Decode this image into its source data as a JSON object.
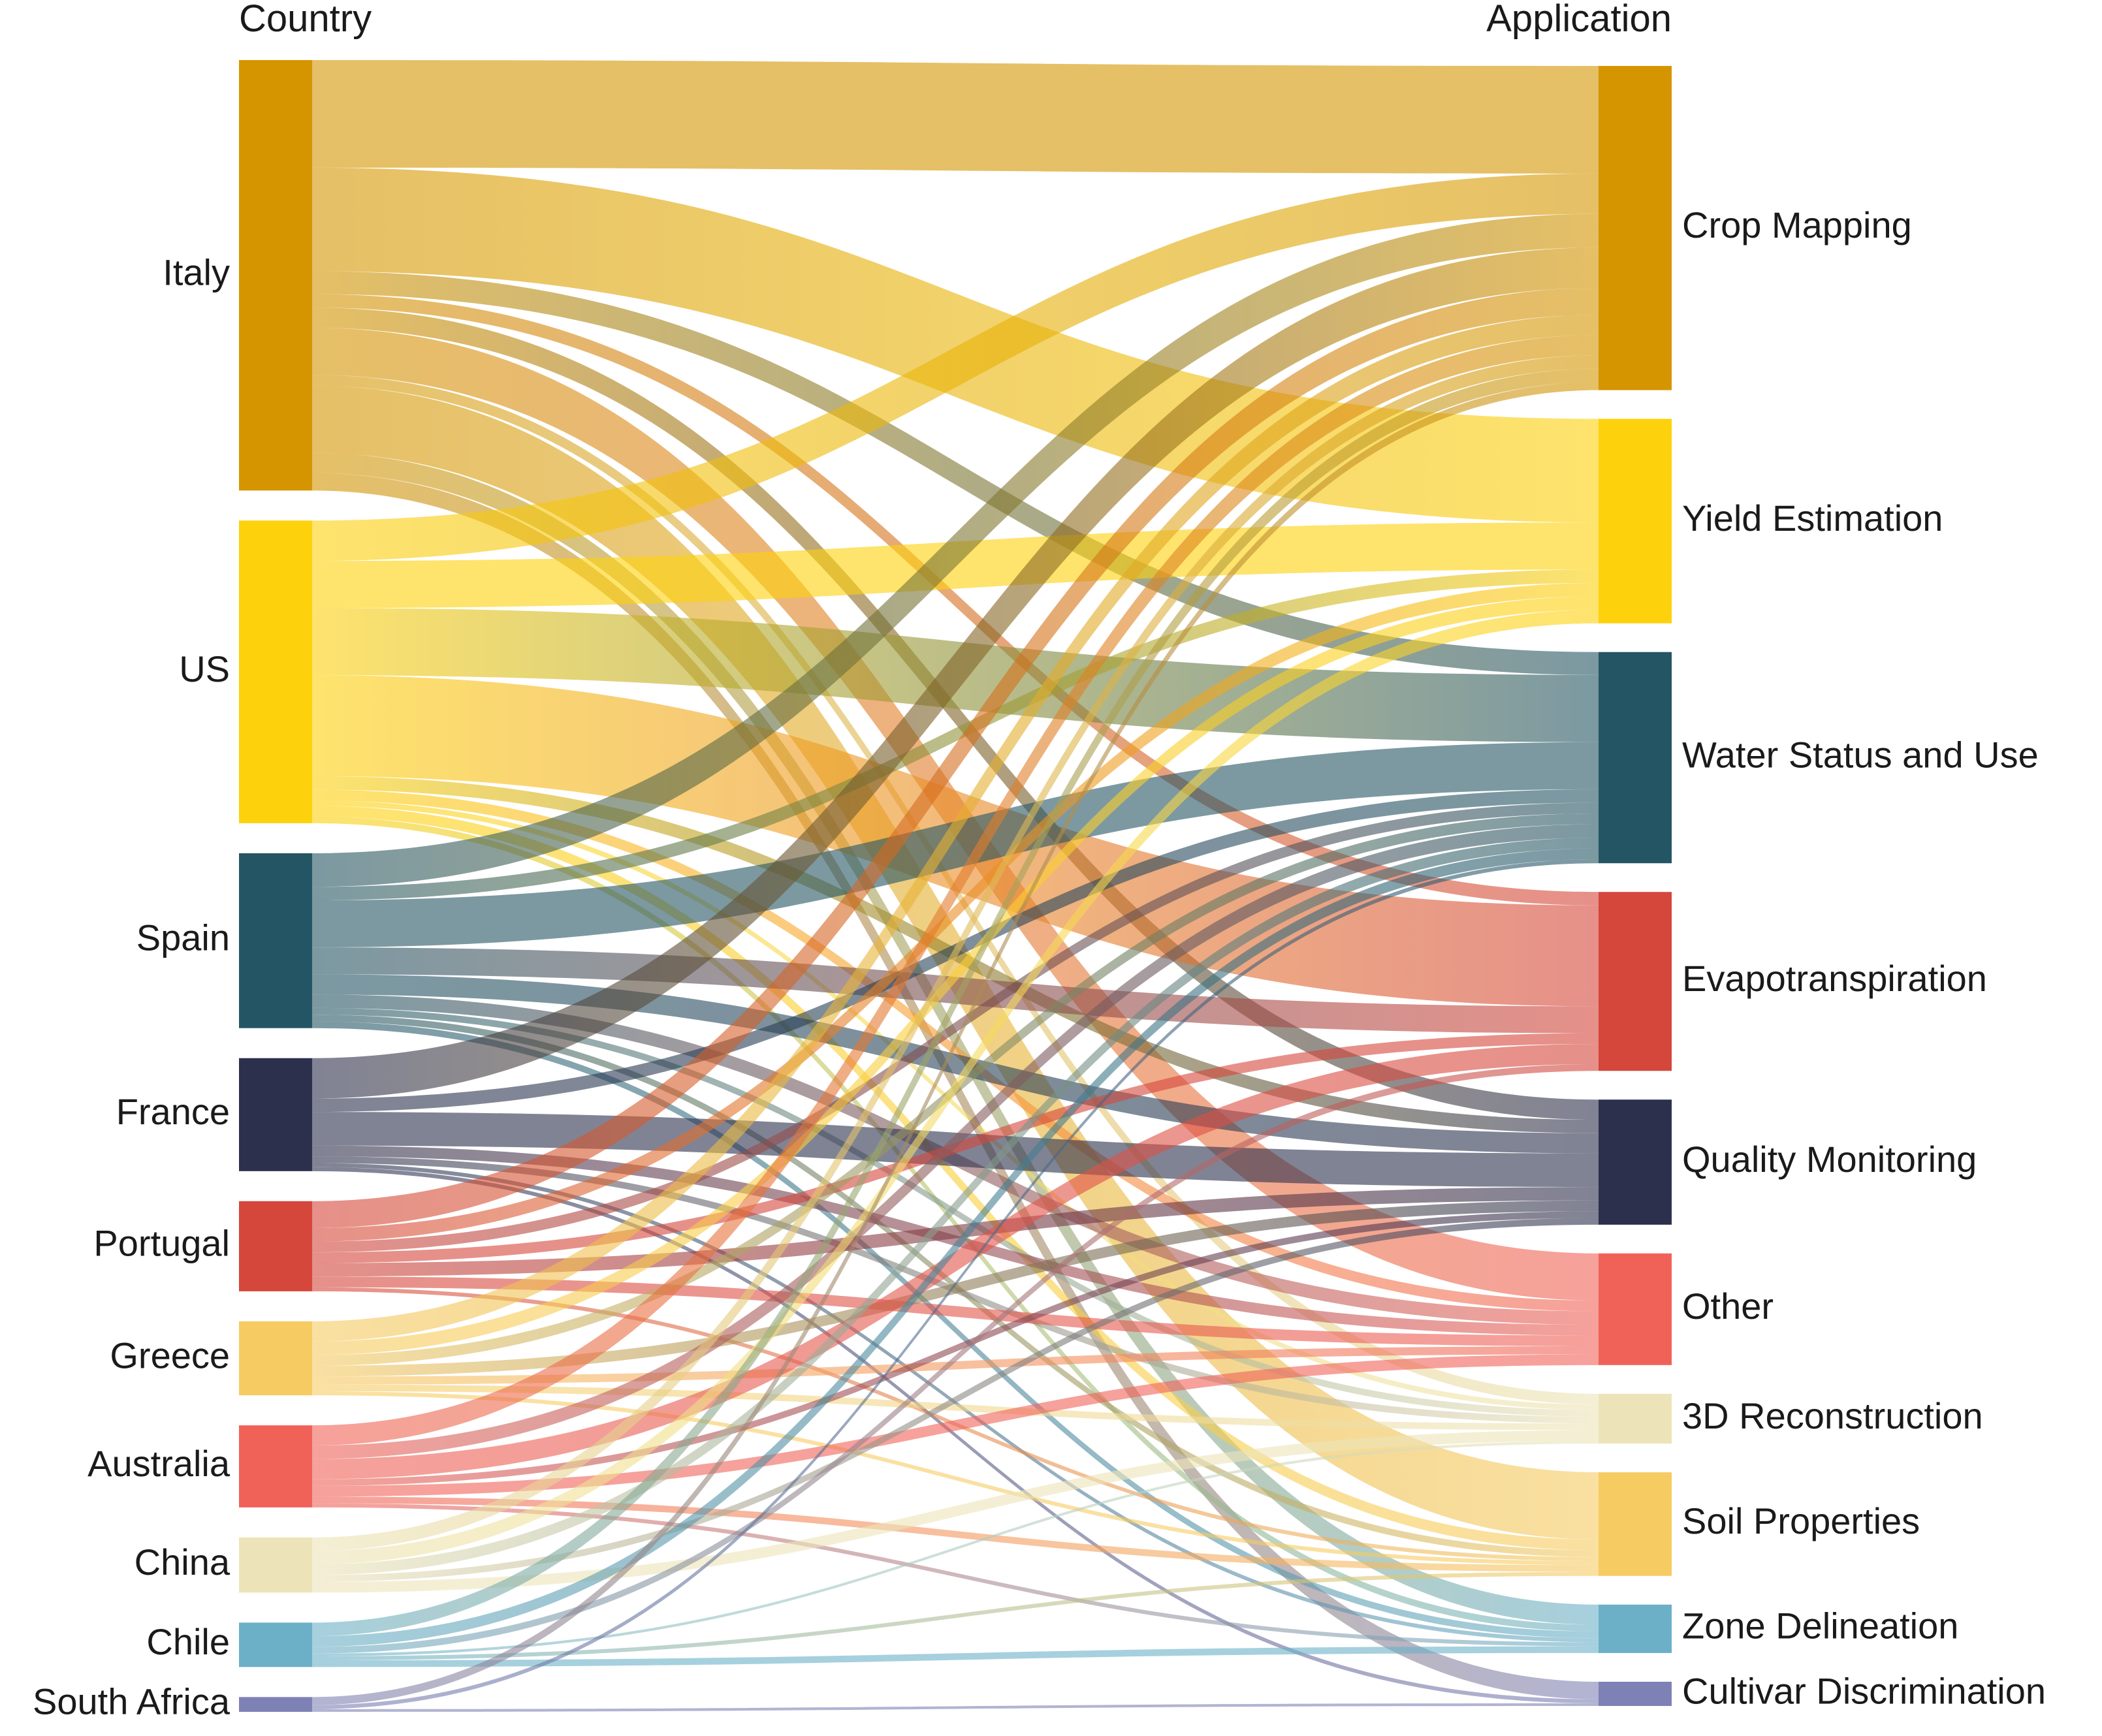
{
  "chart_data": {
    "type": "sankey",
    "title": "",
    "left_header": "Country",
    "right_header": "Application",
    "sources": [
      {
        "name": "Italy",
        "color": "#D49500"
      },
      {
        "name": "US",
        "color": "#FDD10C"
      },
      {
        "name": "Spain",
        "color": "#245564"
      },
      {
        "name": "France",
        "color": "#2C304D"
      },
      {
        "name": "Portugal",
        "color": "#D5463B"
      },
      {
        "name": "Greece",
        "color": "#F6CB62"
      },
      {
        "name": "Australia",
        "color": "#F06258"
      },
      {
        "name": "China",
        "color": "#ECE4B8"
      },
      {
        "name": "Chile",
        "color": "#6BB0C7"
      },
      {
        "name": "South Africa",
        "color": "#7E81B5"
      }
    ],
    "targets": [
      {
        "name": "Crop Mapping",
        "color": "#D49500"
      },
      {
        "name": "Yield Estimation",
        "color": "#FDD10C"
      },
      {
        "name": "Water Status and Use",
        "color": "#245564"
      },
      {
        "name": "Evapotranspiration",
        "color": "#D5463B"
      },
      {
        "name": "Quality Monitoring",
        "color": "#2C304D"
      },
      {
        "name": "Other",
        "color": "#F06258"
      },
      {
        "name": "3D Reconstruction",
        "color": "#ECE4B8"
      },
      {
        "name": "Soil Properties",
        "color": "#F6CB62"
      },
      {
        "name": "Zone Delineation",
        "color": "#6BB0C7"
      },
      {
        "name": "Cultivar Discrimination",
        "color": "#7E81B5"
      }
    ],
    "flows": [
      {
        "source": "Italy",
        "target": "Crop Mapping",
        "value": 8.0
      },
      {
        "source": "Italy",
        "target": "Yield Estimation",
        "value": 7.7
      },
      {
        "source": "Italy",
        "target": "Water Status and Use",
        "value": 1.7
      },
      {
        "source": "Italy",
        "target": "Quality Monitoring",
        "value": 1.5
      },
      {
        "source": "Italy",
        "target": "Evapotranspiration",
        "value": 1.0
      },
      {
        "source": "Italy",
        "target": "Other",
        "value": 3.5
      },
      {
        "source": "Italy",
        "target": "Soil Properties",
        "value": 5.0
      },
      {
        "source": "Italy",
        "target": "3D Reconstruction",
        "value": 0.8
      },
      {
        "source": "Italy",
        "target": "Zone Delineation",
        "value": 1.5
      },
      {
        "source": "Italy",
        "target": "Cultivar Discrimination",
        "value": 1.3
      },
      {
        "source": "US",
        "target": "Crop Mapping",
        "value": 3.0
      },
      {
        "source": "US",
        "target": "Yield Estimation",
        "value": 3.5
      },
      {
        "source": "US",
        "target": "Water Status and Use",
        "value": 5.0
      },
      {
        "source": "US",
        "target": "Evapotranspiration",
        "value": 7.5
      },
      {
        "source": "US",
        "target": "Quality Monitoring",
        "value": 1.0
      },
      {
        "source": "US",
        "target": "Other",
        "value": 0.8
      },
      {
        "source": "US",
        "target": "3D Reconstruction",
        "value": 0.4
      },
      {
        "source": "US",
        "target": "Soil Properties",
        "value": 0.8
      },
      {
        "source": "US",
        "target": "Zone Delineation",
        "value": 0.5
      },
      {
        "source": "Spain",
        "target": "Crop Mapping",
        "value": 2.5
      },
      {
        "source": "Spain",
        "target": "Yield Estimation",
        "value": 1.0
      },
      {
        "source": "Spain",
        "target": "Water Status and Use",
        "value": 3.5
      },
      {
        "source": "Spain",
        "target": "Evapotranspiration",
        "value": 2.0
      },
      {
        "source": "Spain",
        "target": "Quality Monitoring",
        "value": 1.5
      },
      {
        "source": "Spain",
        "target": "Other",
        "value": 1.0
      },
      {
        "source": "Spain",
        "target": "3D Reconstruction",
        "value": 0.5
      },
      {
        "source": "Spain",
        "target": "Soil Properties",
        "value": 0.5
      },
      {
        "source": "Spain",
        "target": "Zone Delineation",
        "value": 0.5
      },
      {
        "source": "France",
        "target": "Crop Mapping",
        "value": 3.0
      },
      {
        "source": "France",
        "target": "Water Status and Use",
        "value": 1.0
      },
      {
        "source": "France",
        "target": "Quality Monitoring",
        "value": 2.5
      },
      {
        "source": "France",
        "target": "Other",
        "value": 0.8
      },
      {
        "source": "France",
        "target": "3D Reconstruction",
        "value": 0.5
      },
      {
        "source": "France",
        "target": "Zone Delineation",
        "value": 0.3
      },
      {
        "source": "France",
        "target": "Cultivar Discrimination",
        "value": 0.3
      },
      {
        "source": "Portugal",
        "target": "Crop Mapping",
        "value": 2.0
      },
      {
        "source": "Portugal",
        "target": "Yield Estimation",
        "value": 1.0
      },
      {
        "source": "Portugal",
        "target": "Water Status and Use",
        "value": 0.8
      },
      {
        "source": "Portugal",
        "target": "Evapotranspiration",
        "value": 0.8
      },
      {
        "source": "Portugal",
        "target": "Quality Monitoring",
        "value": 1.0
      },
      {
        "source": "Portugal",
        "target": "Other",
        "value": 0.8
      },
      {
        "source": "Portugal",
        "target": "Soil Properties",
        "value": 0.3
      },
      {
        "source": "Greece",
        "target": "Crop Mapping",
        "value": 1.5
      },
      {
        "source": "Greece",
        "target": "Yield Estimation",
        "value": 1.0
      },
      {
        "source": "Greece",
        "target": "Water Status and Use",
        "value": 0.8
      },
      {
        "source": "Greece",
        "target": "Quality Monitoring",
        "value": 0.8
      },
      {
        "source": "Greece",
        "target": "Other",
        "value": 0.6
      },
      {
        "source": "Greece",
        "target": "3D Reconstruction",
        "value": 0.5
      },
      {
        "source": "Greece",
        "target": "Soil Properties",
        "value": 0.3
      },
      {
        "source": "Australia",
        "target": "Crop Mapping",
        "value": 1.5
      },
      {
        "source": "Australia",
        "target": "Water Status and Use",
        "value": 1.0
      },
      {
        "source": "Australia",
        "target": "Evapotranspiration",
        "value": 1.5
      },
      {
        "source": "Australia",
        "target": "Quality Monitoring",
        "value": 0.5
      },
      {
        "source": "Australia",
        "target": "Other",
        "value": 0.8
      },
      {
        "source": "Australia",
        "target": "Soil Properties",
        "value": 0.5
      },
      {
        "source": "Australia",
        "target": "Zone Delineation",
        "value": 0.3
      },
      {
        "source": "China",
        "target": "Crop Mapping",
        "value": 1.0
      },
      {
        "source": "China",
        "target": "Yield Estimation",
        "value": 1.0
      },
      {
        "source": "China",
        "target": "Water Status and Use",
        "value": 0.8
      },
      {
        "source": "China",
        "target": "Quality Monitoring",
        "value": 0.5
      },
      {
        "source": "China",
        "target": "3D Reconstruction",
        "value": 0.8
      },
      {
        "source": "Chile",
        "target": "Crop Mapping",
        "value": 1.0
      },
      {
        "source": "Chile",
        "target": "Water Status and Use",
        "value": 0.8
      },
      {
        "source": "Chile",
        "target": "Evapotranspiration",
        "value": 0.5
      },
      {
        "source": "Chile",
        "target": "Zone Delineation",
        "value": 0.5
      },
      {
        "source": "Chile",
        "target": "Soil Properties",
        "value": 0.3
      },
      {
        "source": "Chile",
        "target": "3D Reconstruction",
        "value": 0.2
      },
      {
        "source": "South Africa",
        "target": "Crop Mapping",
        "value": 0.6
      },
      {
        "source": "South Africa",
        "target": "Water Status and Use",
        "value": 0.3
      },
      {
        "source": "South Africa",
        "target": "Cultivar Discrimination",
        "value": 0.2
      }
    ]
  }
}
